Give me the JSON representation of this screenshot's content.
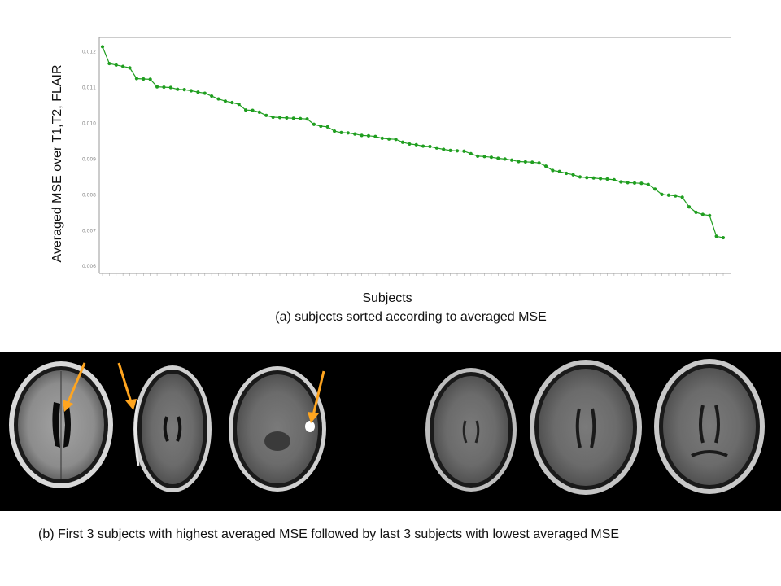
{
  "figure": {
    "caption_a": "(a) subjects sorted according to averaged MSE",
    "caption_b": "(b) First 3 subjects with highest averaged MSE followed by last 3 subjects with lowest averaged MSE",
    "marker_color": "#ffa51f",
    "panel_b_background": "#000000"
  },
  "chart_data": {
    "type": "line",
    "xlabel": "Subjects",
    "ylabel": "Averaged MSE over T1,T2, FLAIR",
    "ylim": [
      0.0058,
      0.0124
    ],
    "yticks": [
      "0.006",
      "0.007",
      "0.008",
      "0.009",
      "0.010",
      "0.011",
      "0.012"
    ],
    "grid": false,
    "series": [
      {
        "color": "#1f9e1f",
        "values": [
          0.01214,
          0.01167,
          0.01163,
          0.01159,
          0.01155,
          0.01125,
          0.01124,
          0.01123,
          0.01102,
          0.01101,
          0.011,
          0.01095,
          0.01094,
          0.01091,
          0.01087,
          0.01084,
          0.01076,
          0.01068,
          0.01062,
          0.01058,
          0.01053,
          0.01037,
          0.01036,
          0.01031,
          0.01022,
          0.01017,
          0.01016,
          0.01015,
          0.01014,
          0.01013,
          0.01012,
          0.00997,
          0.00992,
          0.0099,
          0.00978,
          0.00974,
          0.00973,
          0.0097,
          0.00966,
          0.00965,
          0.00963,
          0.00958,
          0.00956,
          0.00955,
          0.00947,
          0.00942,
          0.0094,
          0.00936,
          0.00935,
          0.00931,
          0.00927,
          0.00924,
          0.00923,
          0.00922,
          0.00915,
          0.00908,
          0.00907,
          0.00905,
          0.00902,
          0.009,
          0.00897,
          0.00893,
          0.00892,
          0.00891,
          0.00889,
          0.0088,
          0.00868,
          0.00865,
          0.0086,
          0.00856,
          0.0085,
          0.00848,
          0.00847,
          0.00845,
          0.00844,
          0.00842,
          0.00836,
          0.00834,
          0.00833,
          0.00832,
          0.00829,
          0.00816,
          0.00801,
          0.00799,
          0.00797,
          0.00793,
          0.00766,
          0.00751,
          0.00745,
          0.00742,
          0.00684,
          0.0068
        ]
      }
    ]
  }
}
